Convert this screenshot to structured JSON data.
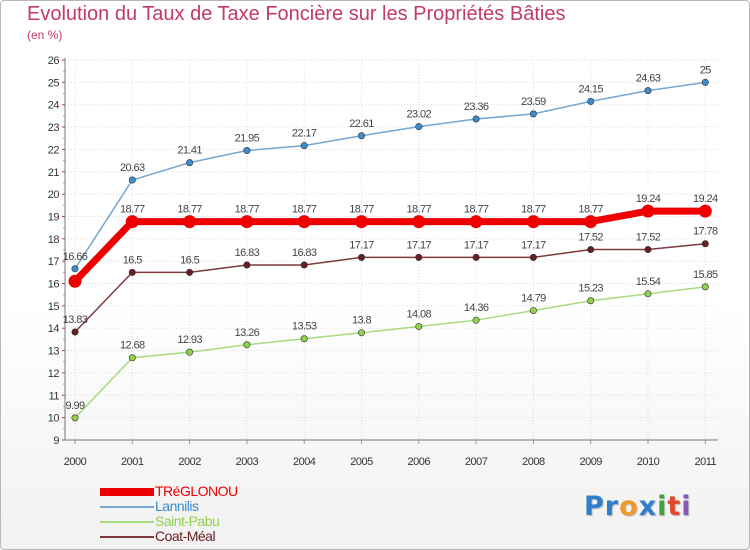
{
  "chart_data": {
    "type": "line",
    "title": "Evolution du Taux de Taxe Foncière sur les Propriétés Bâties",
    "ylabel": "(en %)",
    "xlabel": "",
    "categories": [
      "2000",
      "2001",
      "2002",
      "2003",
      "2004",
      "2005",
      "2006",
      "2007",
      "2008",
      "2009",
      "2010",
      "2011"
    ],
    "ylim": [
      9,
      26
    ],
    "yticks": [
      "9",
      "10",
      "11",
      "12",
      "13",
      "14",
      "15",
      "16",
      "17",
      "18",
      "19",
      "20",
      "21",
      "22",
      "23",
      "24",
      "25",
      "26"
    ],
    "grid": true,
    "series": [
      {
        "name": "TRéGLONOU",
        "color": "#ee0000",
        "marker_color": "#ee0000",
        "emphasized": true,
        "values": [
          16.1,
          18.77,
          18.77,
          18.77,
          18.77,
          18.77,
          18.77,
          18.77,
          18.77,
          18.77,
          19.24,
          19.24
        ],
        "labels": [
          "",
          "18.77",
          "18.77",
          "18.77",
          "18.77",
          "18.77",
          "18.77",
          "18.77",
          "18.77",
          "18.77",
          "19.24",
          "19.24"
        ]
      },
      {
        "name": "Lannilis",
        "color": "#77a6cf",
        "marker_color": "#3d8ccc",
        "emphasized": false,
        "values": [
          16.66,
          20.63,
          21.41,
          21.95,
          22.17,
          22.61,
          23.02,
          23.36,
          23.59,
          24.15,
          24.63,
          25
        ],
        "labels": [
          "16.66",
          "20.63",
          "21.41",
          "21.95",
          "22.17",
          "22.61",
          "23.02",
          "23.36",
          "23.59",
          "24.15",
          "24.63",
          "25"
        ]
      },
      {
        "name": "Saint-Pabu",
        "color": "#a6db7f",
        "marker_color": "#8fd04c",
        "emphasized": false,
        "values": [
          9.99,
          12.68,
          12.93,
          13.26,
          13.53,
          13.8,
          14.08,
          14.36,
          14.79,
          15.23,
          15.54,
          15.85
        ],
        "labels": [
          "9.99",
          "12.68",
          "12.93",
          "13.26",
          "13.53",
          "13.8",
          "14.08",
          "14.36",
          "14.79",
          "15.23",
          "15.54",
          "15.85"
        ]
      },
      {
        "name": "Coat-Méal",
        "color": "#7f3a3d",
        "marker_color": "#661f24",
        "emphasized": false,
        "values": [
          13.83,
          16.5,
          16.5,
          16.83,
          16.83,
          17.17,
          17.17,
          17.17,
          17.17,
          17.52,
          17.52,
          17.78
        ],
        "labels": [
          "13.83",
          "16.5",
          "16.5",
          "16.83",
          "16.83",
          "17.17",
          "17.17",
          "17.17",
          "17.17",
          "17.52",
          "17.52",
          "17.78"
        ]
      }
    ],
    "legend_position": "bottom-left"
  },
  "logo": {
    "letters": [
      "P",
      "r",
      "o",
      "x",
      "i",
      "t",
      "i"
    ],
    "colors": [
      "#2c7fc8",
      "#2c7fc8",
      "#f09a2a",
      "#2c7fc8",
      "#3aa63a",
      "#e04a2a",
      "#8a56b6"
    ]
  }
}
